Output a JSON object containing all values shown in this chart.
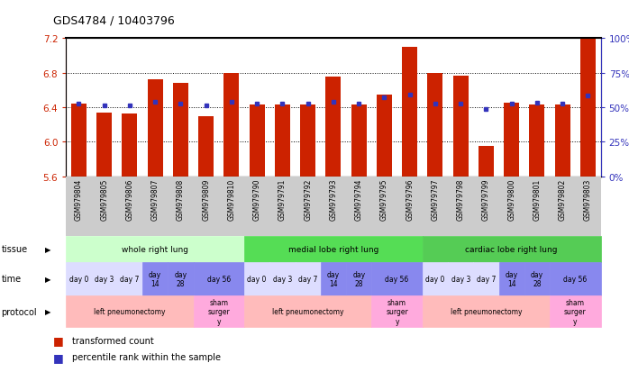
{
  "title": "GDS4784 / 10403796",
  "samples": [
    "GSM979804",
    "GSM979805",
    "GSM979806",
    "GSM979807",
    "GSM979808",
    "GSM979809",
    "GSM979810",
    "GSM979790",
    "GSM979791",
    "GSM979792",
    "GSM979793",
    "GSM979794",
    "GSM979795",
    "GSM979796",
    "GSM979797",
    "GSM979798",
    "GSM979799",
    "GSM979800",
    "GSM979801",
    "GSM979802",
    "GSM979803"
  ],
  "bar_values": [
    6.44,
    6.34,
    6.33,
    6.72,
    6.68,
    6.3,
    6.8,
    6.43,
    6.43,
    6.43,
    6.76,
    6.43,
    6.55,
    7.1,
    6.8,
    6.77,
    5.95,
    6.45,
    6.43,
    6.43,
    7.2
  ],
  "blue_values": [
    6.44,
    6.42,
    6.42,
    6.46,
    6.44,
    6.42,
    6.46,
    6.44,
    6.44,
    6.44,
    6.46,
    6.44,
    6.52,
    6.55,
    6.44,
    6.44,
    6.38,
    6.44,
    6.45,
    6.44,
    6.54
  ],
  "ylim_left": [
    5.6,
    7.2
  ],
  "ylim_right": [
    0,
    100
  ],
  "yticks_left": [
    5.6,
    6.0,
    6.4,
    6.8,
    7.2
  ],
  "yticks_right": [
    0,
    25,
    50,
    75,
    100
  ],
  "bar_color": "#cc2200",
  "blue_color": "#3333bb",
  "xlabel_bg": "#cccccc",
  "tissue_groups": [
    {
      "label": "whole right lung",
      "start": 0,
      "end": 7,
      "color": "#ccffcc"
    },
    {
      "label": "medial lobe right lung",
      "start": 7,
      "end": 14,
      "color": "#55dd55"
    },
    {
      "label": "cardiac lobe right lung",
      "start": 14,
      "end": 21,
      "color": "#55cc55"
    }
  ],
  "time_groups": [
    {
      "label": "day 0",
      "start": 0,
      "end": 1,
      "color": "#ddddff"
    },
    {
      "label": "day 3",
      "start": 1,
      "end": 2,
      "color": "#ddddff"
    },
    {
      "label": "day 7",
      "start": 2,
      "end": 3,
      "color": "#ddddff"
    },
    {
      "label": "day\n14",
      "start": 3,
      "end": 4,
      "color": "#8888ee"
    },
    {
      "label": "day\n28",
      "start": 4,
      "end": 5,
      "color": "#8888ee"
    },
    {
      "label": "day 56",
      "start": 5,
      "end": 7,
      "color": "#8888ee"
    },
    {
      "label": "day 0",
      "start": 7,
      "end": 8,
      "color": "#ddddff"
    },
    {
      "label": "day 3",
      "start": 8,
      "end": 9,
      "color": "#ddddff"
    },
    {
      "label": "day 7",
      "start": 9,
      "end": 10,
      "color": "#ddddff"
    },
    {
      "label": "day\n14",
      "start": 10,
      "end": 11,
      "color": "#8888ee"
    },
    {
      "label": "day\n28",
      "start": 11,
      "end": 12,
      "color": "#8888ee"
    },
    {
      "label": "day 56",
      "start": 12,
      "end": 14,
      "color": "#8888ee"
    },
    {
      "label": "day 0",
      "start": 14,
      "end": 15,
      "color": "#ddddff"
    },
    {
      "label": "day 3",
      "start": 15,
      "end": 16,
      "color": "#ddddff"
    },
    {
      "label": "day 7",
      "start": 16,
      "end": 17,
      "color": "#ddddff"
    },
    {
      "label": "day\n14",
      "start": 17,
      "end": 18,
      "color": "#8888ee"
    },
    {
      "label": "day\n28",
      "start": 18,
      "end": 19,
      "color": "#8888ee"
    },
    {
      "label": "day 56",
      "start": 19,
      "end": 21,
      "color": "#8888ee"
    }
  ],
  "protocol_groups": [
    {
      "label": "left pneumonectomy",
      "start": 0,
      "end": 5,
      "color": "#ffbbbb"
    },
    {
      "label": "sham\nsurger\ny",
      "start": 5,
      "end": 7,
      "color": "#ffaadd"
    },
    {
      "label": "left pneumonectomy",
      "start": 7,
      "end": 12,
      "color": "#ffbbbb"
    },
    {
      "label": "sham\nsurger\ny",
      "start": 12,
      "end": 14,
      "color": "#ffaadd"
    },
    {
      "label": "left pneumonectomy",
      "start": 14,
      "end": 19,
      "color": "#ffbbbb"
    },
    {
      "label": "sham\nsurger\ny",
      "start": 19,
      "end": 21,
      "color": "#ffaadd"
    }
  ],
  "legend_items": [
    {
      "label": "transformed count",
      "color": "#cc2200"
    },
    {
      "label": "percentile rank within the sample",
      "color": "#3333bb"
    }
  ]
}
